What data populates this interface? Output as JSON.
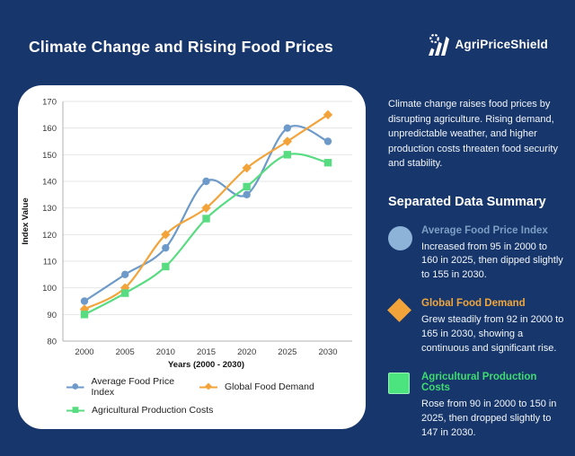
{
  "header": {
    "title": "Climate Change and Rising Food Prices",
    "brand": "AgriPriceShield"
  },
  "chart_data": {
    "type": "line",
    "x": [
      2000,
      2005,
      2010,
      2015,
      2020,
      2025,
      2030
    ],
    "series": [
      {
        "name": "Average Food Price Index",
        "color": "#6d9ac9",
        "marker": "circle",
        "values": [
          95,
          105,
          115,
          140,
          135,
          160,
          155
        ]
      },
      {
        "name": "Global Food Demand",
        "color": "#f2a43a",
        "marker": "diamond",
        "values": [
          92,
          100,
          120,
          130,
          145,
          155,
          165
        ]
      },
      {
        "name": "Agricultural Production Costs",
        "color": "#58dc81",
        "marker": "square",
        "values": [
          90,
          98,
          108,
          126,
          138,
          150,
          147
        ]
      }
    ],
    "xlabel": "Years (2000 - 2030)",
    "ylabel": "Index Value",
    "ylim": [
      80,
      170
    ],
    "ytick_step": 10,
    "grid": true,
    "legend_position": "bottom"
  },
  "sidebar": {
    "intro": "Climate change raises food prices by disrupting agriculture. Rising demand, unpredictable weather, and higher production costs threaten food security and stability.",
    "summary_title": "Separated Data Summary",
    "items": [
      {
        "label": "Average Food Price Index",
        "icon": "circle-icon",
        "color": "#8db3d8",
        "label_color": "#7d9fc5",
        "text": "Increased from 95 in 2000 to 160 in 2025, then dipped slightly to 155 in 2030."
      },
      {
        "label": "Global Food Demand",
        "icon": "diamond-icon",
        "color": "#f2a43a",
        "label_color": "#f0a63c",
        "text": "Grew steadily from 92 in 2000 to 165 in 2030, showing a continuous and significant rise."
      },
      {
        "label": "Agricultural Production Costs",
        "icon": "square-icon",
        "color": "#4ce47e",
        "label_color": "#3edc71",
        "text": "Rose from 90 in 2000 to 150 in 2025, then dropped slightly to 147 in 2030."
      }
    ]
  },
  "colors": {
    "background": "#17366b",
    "card": "#ffffff"
  }
}
